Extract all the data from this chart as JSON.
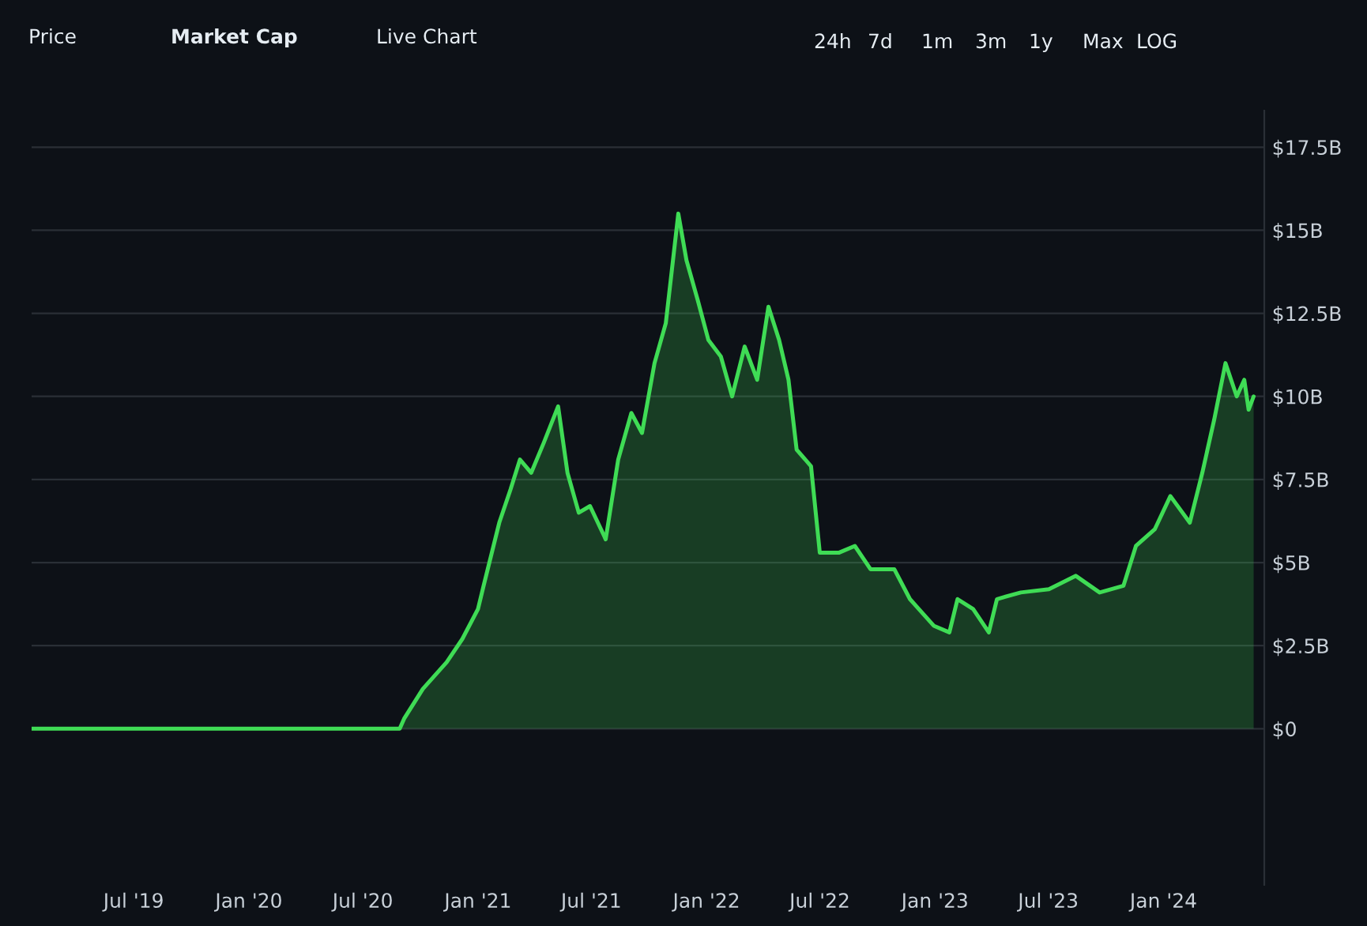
{
  "chart_data": {
    "type": "area",
    "x": [
      "2019-01-19",
      "2020-08-29",
      "2020-09-05",
      "2020-10-05",
      "2020-11-12",
      "2020-12-07",
      "2021-01-01",
      "2021-01-10",
      "2021-02-04",
      "2021-02-22",
      "2021-03-09",
      "2021-03-27",
      "2021-04-16",
      "2021-05-09",
      "2021-05-24",
      "2021-06-11",
      "2021-06-29",
      "2021-07-24",
      "2021-08-13",
      "2021-09-03",
      "2021-09-20",
      "2021-10-10",
      "2021-10-28",
      "2021-11-17",
      "2021-11-30",
      "2021-12-18",
      "2022-01-04",
      "2022-01-24",
      "2022-02-11",
      "2022-03-03",
      "2022-03-23",
      "2022-04-10",
      "2022-04-27",
      "2022-05-12",
      "2022-05-25",
      "2022-06-17",
      "2022-07-01",
      "2022-08-01",
      "2022-08-26",
      "2022-09-20",
      "2022-10-28",
      "2022-11-22",
      "2022-12-30",
      "2023-01-24",
      "2023-02-06",
      "2023-03-03",
      "2023-03-28",
      "2023-04-10",
      "2023-05-18",
      "2023-07-02",
      "2023-08-14",
      "2023-09-21",
      "2023-10-29",
      "2023-11-18",
      "2023-12-18",
      "2024-01-12",
      "2024-02-12",
      "2024-03-03",
      "2024-03-22",
      "2024-04-09",
      "2024-04-27",
      "2024-05-09",
      "2024-05-16",
      "2024-05-24"
    ],
    "series": [
      {
        "color": "#3fdc55",
        "values": [
          0,
          0,
          0.3,
          1.2,
          2.0,
          2.7,
          3.6,
          4.3,
          6.2,
          7.2,
          8.1,
          7.7,
          8.6,
          9.7,
          7.7,
          6.5,
          6.7,
          5.7,
          8.1,
          9.5,
          8.9,
          11.0,
          12.2,
          15.5,
          14.1,
          12.9,
          11.7,
          11.2,
          10.0,
          11.5,
          10.5,
          12.7,
          11.7,
          10.5,
          8.4,
          7.9,
          5.3,
          5.3,
          5.5,
          4.8,
          4.8,
          3.9,
          3.1,
          2.9,
          3.9,
          3.6,
          2.9,
          3.9,
          4.1,
          4.2,
          4.6,
          4.1,
          4.3,
          5.5,
          6.0,
          7.0,
          6.2,
          7.7,
          9.3,
          11.0,
          10.0,
          10.5,
          9.6,
          10.0
        ]
      }
    ],
    "xlim": [
      "2019-01-19",
      "2024-06-10"
    ],
    "xticks": [
      {
        "value": "2019-07-01",
        "label": "Jul '19"
      },
      {
        "value": "2020-01-01",
        "label": "Jan '20"
      },
      {
        "value": "2020-07-01",
        "label": "Jul '20"
      },
      {
        "value": "2021-01-01",
        "label": "Jan '21"
      },
      {
        "value": "2021-07-01",
        "label": "Jul '21"
      },
      {
        "value": "2022-01-01",
        "label": "Jan '22"
      },
      {
        "value": "2022-07-01",
        "label": "Jul '22"
      },
      {
        "value": "2023-01-01",
        "label": "Jan '23"
      },
      {
        "value": "2023-07-01",
        "label": "Jul '23"
      },
      {
        "value": "2024-01-01",
        "label": "Jan '24"
      }
    ],
    "ylim": [
      -4.7,
      18.6
    ],
    "yticks": [
      {
        "value": 0,
        "label": "$0"
      },
      {
        "value": 2.5,
        "label": "$2.5B"
      },
      {
        "value": 5,
        "label": "$5B"
      },
      {
        "value": 7.5,
        "label": "$7.5B"
      },
      {
        "value": 10,
        "label": "$10B"
      },
      {
        "value": 12.5,
        "label": "$12.5B"
      },
      {
        "value": 15,
        "label": "$15B"
      },
      {
        "value": 17.5,
        "label": "$17.5B"
      }
    ],
    "grid": "y",
    "annotations": [
      "Price",
      "Market Cap",
      "Live Chart",
      "24h",
      "7d",
      "1m",
      "3m",
      "1y",
      "Max",
      "LOG"
    ]
  }
}
